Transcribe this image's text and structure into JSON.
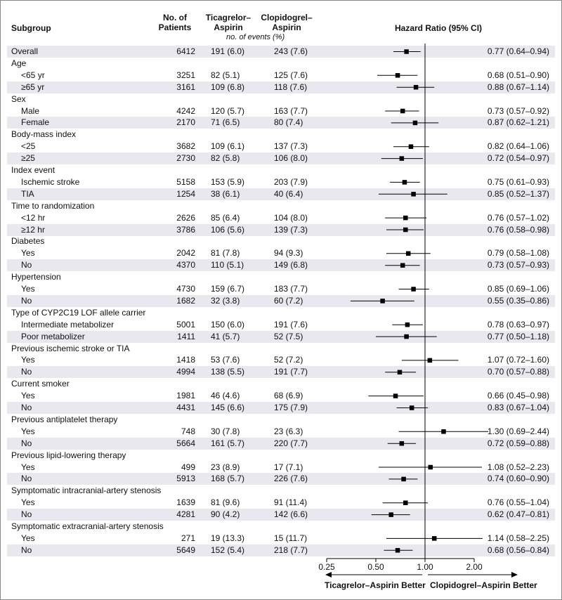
{
  "headers": {
    "subgroup": "Subgroup",
    "patients_line1": "No. of",
    "patients_line2": "Patients",
    "tica_line1": "Ticagrelor–",
    "tica_line2": "Aspirin",
    "clop_line1": "Clopidogrel–",
    "clop_line2": "Aspirin",
    "events_note": "no. of events (%)",
    "hr": "Hazard Ratio (95% CI)"
  },
  "chart_data": {
    "type": "forest",
    "xscale": "log",
    "xlim": [
      0.25,
      2.0
    ],
    "xticks": [
      "0.25",
      "0.50",
      "1.00",
      "2.00"
    ],
    "reference_line": 1.0,
    "left_label": "Ticagrelor–Aspirin Better",
    "right_label": "Clopidogrel–Aspirin Better",
    "rows": [
      {
        "label": "Overall",
        "n": "6412",
        "tica": "191 (6.0)",
        "clop": "243 (7.6)",
        "hr": 0.77,
        "lo": 0.64,
        "hi": 0.94,
        "hr_text": "0.77 (0.64–0.94)"
      },
      {
        "label": "Age",
        "group": true
      },
      {
        "label": "<65 yr",
        "n": "3251",
        "tica": "82 (5.1)",
        "clop": "125 (7.6)",
        "hr": 0.68,
        "lo": 0.51,
        "hi": 0.9,
        "hr_text": "0.68 (0.51–0.90)"
      },
      {
        "label": "≥65 yr",
        "n": "3161",
        "tica": "109 (6.8)",
        "clop": "118 (7.6)",
        "hr": 0.88,
        "lo": 0.67,
        "hi": 1.14,
        "hr_text": "0.88 (0.67–1.14)"
      },
      {
        "label": "Sex",
        "group": true
      },
      {
        "label": "Male",
        "n": "4242",
        "tica": "120 (5.7)",
        "clop": "163 (7.7)",
        "hr": 0.73,
        "lo": 0.57,
        "hi": 0.92,
        "hr_text": "0.73 (0.57–0.92)"
      },
      {
        "label": "Female",
        "n": "2170",
        "tica": "71 (6.5)",
        "clop": "80 (7.4)",
        "hr": 0.87,
        "lo": 0.62,
        "hi": 1.21,
        "hr_text": "0.87 (0.62–1.21)"
      },
      {
        "label": "Body-mass index",
        "group": true
      },
      {
        "label": "<25",
        "n": "3682",
        "tica": "109 (6.1)",
        "clop": "137 (7.3)",
        "hr": 0.82,
        "lo": 0.64,
        "hi": 1.06,
        "hr_text": "0.82 (0.64–1.06)"
      },
      {
        "label": "≥25",
        "n": "2730",
        "tica": "82 (5.8)",
        "clop": "106 (8.0)",
        "hr": 0.72,
        "lo": 0.54,
        "hi": 0.97,
        "hr_text": "0.72 (0.54–0.97)"
      },
      {
        "label": "Index event",
        "group": true
      },
      {
        "label": "Ischemic stroke",
        "n": "5158",
        "tica": "153 (5.9)",
        "clop": "203 (7.9)",
        "hr": 0.75,
        "lo": 0.61,
        "hi": 0.93,
        "hr_text": "0.75 (0.61–0.93)"
      },
      {
        "label": "TIA",
        "n": "1254",
        "tica": "38 (6.1)",
        "clop": "40 (6.4)",
        "hr": 0.85,
        "lo": 0.52,
        "hi": 1.37,
        "hr_text": "0.85 (0.52–1.37)"
      },
      {
        "label": "Time to randomization",
        "group": true
      },
      {
        "label": "<12 hr",
        "n": "2626",
        "tica": "85 (6.4)",
        "clop": "104 (8.0)",
        "hr": 0.76,
        "lo": 0.57,
        "hi": 1.02,
        "hr_text": "0.76 (0.57–1.02)"
      },
      {
        "label": "≥12 hr",
        "n": "3786",
        "tica": "106 (5.6)",
        "clop": "139 (7.3)",
        "hr": 0.76,
        "lo": 0.58,
        "hi": 0.98,
        "hr_text": "0.76 (0.58–0.98)"
      },
      {
        "label": "Diabetes",
        "group": true
      },
      {
        "label": "Yes",
        "n": "2042",
        "tica": "81 (7.8)",
        "clop": "94 (9.3)",
        "hr": 0.79,
        "lo": 0.58,
        "hi": 1.08,
        "hr_text": "0.79 (0.58–1.08)"
      },
      {
        "label": "No",
        "n": "4370",
        "tica": "110 (5.1)",
        "clop": "149 (6.8)",
        "hr": 0.73,
        "lo": 0.57,
        "hi": 0.93,
        "hr_text": "0.73 (0.57–0.93)"
      },
      {
        "label": "Hypertension",
        "group": true
      },
      {
        "label": "Yes",
        "n": "4730",
        "tica": "159 (6.7)",
        "clop": "183 (7.7)",
        "hr": 0.85,
        "lo": 0.69,
        "hi": 1.06,
        "hr_text": "0.85 (0.69–1.06)"
      },
      {
        "label": "No",
        "n": "1682",
        "tica": "32 (3.8)",
        "clop": "60 (7.2)",
        "hr": 0.55,
        "lo": 0.35,
        "hi": 0.86,
        "hr_text": "0.55 (0.35–0.86)"
      },
      {
        "label": "Type of CYP2C19 LOF allele carrier",
        "group": true
      },
      {
        "label": "Intermediate metabolizer",
        "n": "5001",
        "tica": "150 (6.0)",
        "clop": "191 (7.6)",
        "hr": 0.78,
        "lo": 0.63,
        "hi": 0.97,
        "hr_text": "0.78 (0.63–0.97)"
      },
      {
        "label": "Poor metabolizer",
        "n": "1411",
        "tica": "41 (5.7)",
        "clop": "52 (7.5)",
        "hr": 0.77,
        "lo": 0.5,
        "hi": 1.18,
        "hr_text": "0.77 (0.50–1.18)"
      },
      {
        "label": "Previous ischemic stroke or TIA",
        "group": true
      },
      {
        "label": "Yes",
        "n": "1418",
        "tica": "53 (7.6)",
        "clop": "52 (7.2)",
        "hr": 1.07,
        "lo": 0.72,
        "hi": 1.6,
        "hr_text": "1.07 (0.72–1.60)"
      },
      {
        "label": "No",
        "n": "4994",
        "tica": "138 (5.5)",
        "clop": "191 (7.7)",
        "hr": 0.7,
        "lo": 0.57,
        "hi": 0.88,
        "hr_text": "0.70 (0.57–0.88)"
      },
      {
        "label": "Current smoker",
        "group": true
      },
      {
        "label": "Yes",
        "n": "1981",
        "tica": "46 (4.6)",
        "clop": "68 (6.9)",
        "hr": 0.66,
        "lo": 0.45,
        "hi": 0.98,
        "hr_text": "0.66 (0.45–0.98)"
      },
      {
        "label": "No",
        "n": "4431",
        "tica": "145 (6.6)",
        "clop": "175 (7.9)",
        "hr": 0.83,
        "lo": 0.67,
        "hi": 1.04,
        "hr_text": "0.83 (0.67–1.04)"
      },
      {
        "label": "Previous antiplatelet therapy",
        "group": true
      },
      {
        "label": "Yes",
        "n": "748",
        "tica": "30 (7.8)",
        "clop": "23 (6.3)",
        "hr": 1.3,
        "lo": 0.69,
        "hi": 2.44,
        "hr_text": "1.30 (0.69–2.44)"
      },
      {
        "label": "No",
        "n": "5664",
        "tica": "161 (5.7)",
        "clop": "220 (7.7)",
        "hr": 0.72,
        "lo": 0.59,
        "hi": 0.88,
        "hr_text": "0.72 (0.59–0.88)"
      },
      {
        "label": "Previous lipid-lowering therapy",
        "group": true
      },
      {
        "label": "Yes",
        "n": "499",
        "tica": "23 (8.9)",
        "clop": "17 (7.1)",
        "hr": 1.08,
        "lo": 0.52,
        "hi": 2.23,
        "hr_text": "1.08 (0.52–2.23)"
      },
      {
        "label": "No",
        "n": "5913",
        "tica": "168 (5.7)",
        "clop": "226 (7.6)",
        "hr": 0.74,
        "lo": 0.6,
        "hi": 0.9,
        "hr_text": "0.74 (0.60–0.90)"
      },
      {
        "label": "Symptomatic intracranial-artery stenosis",
        "group": true
      },
      {
        "label": "Yes",
        "n": "1639",
        "tica": "81 (9.6)",
        "clop": "91 (11.4)",
        "hr": 0.76,
        "lo": 0.55,
        "hi": 1.04,
        "hr_text": "0.76 (0.55–1.04)"
      },
      {
        "label": "No",
        "n": "4281",
        "tica": "90 (4.2)",
        "clop": "142 (6.6)",
        "hr": 0.62,
        "lo": 0.47,
        "hi": 0.81,
        "hr_text": "0.62 (0.47–0.81)"
      },
      {
        "label": "Symptomatic extracranial-artery stenosis",
        "group": true
      },
      {
        "label": "Yes",
        "n": "271",
        "tica": "19 (13.3)",
        "clop": "15 (11.7)",
        "hr": 1.14,
        "lo": 0.58,
        "hi": 2.25,
        "hr_text": "1.14 (0.58–2.25)"
      },
      {
        "label": "No",
        "n": "5649",
        "tica": "152 (5.4)",
        "clop": "218 (7.7)",
        "hr": 0.68,
        "lo": 0.56,
        "hi": 0.84,
        "hr_text": "0.68 (0.56–0.84)"
      }
    ]
  }
}
